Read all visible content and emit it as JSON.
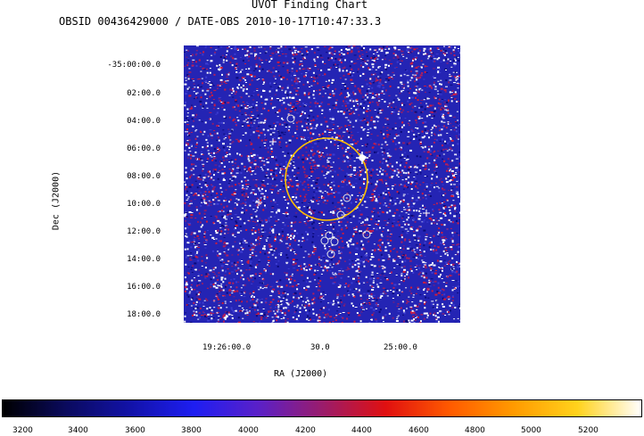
{
  "header": {
    "title": "UVOT Finding Chart",
    "subtitle": "OBSID 00436429000 / DATE-OBS 2010-10-17T10:47:33.3"
  },
  "dec_axis": {
    "label": "Dec (J2000)",
    "ticks": [
      "-35:00:00.0",
      "02:00.0",
      "04:00.0",
      "06:00.0",
      "08:00.0",
      "10:00.0",
      "12:00.0",
      "14:00.0",
      "16:00.0",
      "18:00.0"
    ]
  },
  "ra_axis": {
    "label": "RA (J2000)",
    "ticks": [
      "19:26:00.0",
      "30.0",
      "25:00.0"
    ]
  },
  "colorbar": {
    "ticks": [
      "3200",
      "3400",
      "3600",
      "3800",
      "4000",
      "4200",
      "4400",
      "4600",
      "4800",
      "5000",
      "5200"
    ],
    "stops": [
      "#000000",
      "#0a0a5e",
      "#1212a8",
      "#1e1ef2",
      "#5a20c8",
      "#9a1c6c",
      "#e01010",
      "#ff5a00",
      "#ff9a00",
      "#ffd21c",
      "#ffffff"
    ]
  },
  "colors": {
    "error_circle": "#ffc000",
    "source_marker": "#e6e6e6",
    "image_background": "#2424b4"
  }
}
